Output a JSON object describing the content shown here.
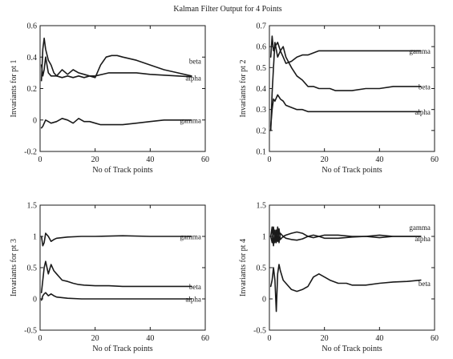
{
  "chart_data": {
    "title": "Kalman Filter Output for 4 Points",
    "line_color": "#1a1a1a",
    "background": "#ffffff",
    "charts": [
      {
        "type": "line",
        "xlabel": "No of Track points",
        "ylabel": "Invariants for pt 1",
        "xlim": [
          0,
          60
        ],
        "ylim": [
          -0.2,
          0.6
        ],
        "xticks": [
          "0",
          "20",
          "40",
          "60"
        ],
        "yticks": [
          "-0.2",
          "0",
          "0.2",
          "0.4",
          "0.6"
        ],
        "grid": false,
        "series": [
          {
            "name": "beta",
            "label_y": 0.375,
            "x": [
              0.5,
              1,
              1.5,
              2,
              3,
              4,
              5,
              6,
              8,
              10,
              12,
              14,
              16,
              18,
              20,
              22,
              24,
              26,
              28,
              30,
              35,
              40,
              45,
              50,
              55
            ],
            "y": [
              0.25,
              0.45,
              0.52,
              0.45,
              0.38,
              0.35,
              0.3,
              0.28,
              0.32,
              0.29,
              0.32,
              0.3,
              0.29,
              0.28,
              0.27,
              0.35,
              0.4,
              0.41,
              0.41,
              0.4,
              0.38,
              0.35,
              0.32,
              0.3,
              0.28
            ]
          },
          {
            "name": "alpha",
            "label_y": 0.27,
            "x": [
              0.5,
              1,
              1.5,
              2,
              3,
              4,
              6,
              8,
              10,
              12,
              14,
              16,
              18,
              20,
              25,
              30,
              35,
              40,
              45,
              50,
              55
            ],
            "y": [
              0.35,
              0.28,
              0.32,
              0.4,
              0.3,
              0.28,
              0.28,
              0.27,
              0.28,
              0.27,
              0.28,
              0.27,
              0.28,
              0.28,
              0.3,
              0.3,
              0.3,
              0.29,
              0.285,
              0.28,
              0.275
            ]
          },
          {
            "name": "gamma",
            "label_y": 0.0,
            "x": [
              0.5,
              1,
              2,
              3,
              4,
              6,
              8,
              10,
              12,
              14,
              16,
              18,
              20,
              22,
              24,
              26,
              28,
              30,
              35,
              40,
              45,
              50,
              55
            ],
            "y": [
              -0.05,
              -0.04,
              0.0,
              -0.01,
              -0.02,
              -0.01,
              0.01,
              0.0,
              -0.02,
              0.01,
              -0.01,
              -0.01,
              -0.02,
              -0.03,
              -0.03,
              -0.03,
              -0.03,
              -0.03,
              -0.02,
              -0.01,
              0.0,
              0.0,
              0.0
            ]
          }
        ]
      },
      {
        "type": "line",
        "xlabel": "No of Track points",
        "ylabel": "Invariants for pt 2",
        "xlim": [
          0,
          60
        ],
        "ylim": [
          0.1,
          0.7
        ],
        "xticks": [
          "0",
          "20",
          "40",
          "60"
        ],
        "yticks": [
          "0.1",
          "0.2",
          "0.3",
          "0.4",
          "0.5",
          "0.6",
          "0.7"
        ],
        "grid": false,
        "series": [
          {
            "name": "gamma",
            "label_y": 0.58,
            "x": [
              0.5,
              1,
              1.5,
              2,
              3,
              4,
              5,
              6,
              8,
              10,
              12,
              14,
              16,
              18,
              20,
              25,
              30,
              35,
              40,
              45,
              50,
              55
            ],
            "y": [
              0.2,
              0.38,
              0.5,
              0.62,
              0.55,
              0.58,
              0.55,
              0.52,
              0.53,
              0.55,
              0.56,
              0.56,
              0.57,
              0.58,
              0.58,
              0.58,
              0.58,
              0.58,
              0.58,
              0.58,
              0.58,
              0.58
            ]
          },
          {
            "name": "beta",
            "label_y": 0.41,
            "x": [
              0.5,
              1,
              1.5,
              2,
              3,
              4,
              5,
              6,
              8,
              10,
              12,
              14,
              16,
              18,
              20,
              22,
              24,
              26,
              28,
              30,
              35,
              40,
              45,
              50,
              55
            ],
            "y": [
              0.55,
              0.65,
              0.58,
              0.6,
              0.62,
              0.58,
              0.6,
              0.55,
              0.5,
              0.46,
              0.44,
              0.41,
              0.41,
              0.4,
              0.4,
              0.4,
              0.39,
              0.39,
              0.39,
              0.39,
              0.4,
              0.4,
              0.41,
              0.41,
              0.41
            ]
          },
          {
            "name": "alpha",
            "label_y": 0.29,
            "x": [
              0.5,
              1,
              1.5,
              2,
              3,
              4,
              5,
              6,
              8,
              10,
              12,
              14,
              16,
              18,
              20,
              30,
              40,
              50,
              55
            ],
            "y": [
              0.22,
              0.3,
              0.35,
              0.34,
              0.37,
              0.35,
              0.34,
              0.32,
              0.31,
              0.3,
              0.3,
              0.29,
              0.29,
              0.29,
              0.29,
              0.29,
              0.29,
              0.29,
              0.29
            ]
          }
        ]
      },
      {
        "type": "line",
        "xlabel": "No of Track points",
        "ylabel": "Invariants for pt 3",
        "xlim": [
          0,
          60
        ],
        "ylim": [
          -0.5,
          1.5
        ],
        "xticks": [
          "0",
          "20",
          "40",
          "60"
        ],
        "yticks": [
          "-0.5",
          "0",
          "0.5",
          "1",
          "1.5"
        ],
        "grid": false,
        "series": [
          {
            "name": "gamma",
            "label_y": 1.0,
            "x": [
              0.5,
              1,
              1.5,
              2,
              3,
              4,
              5,
              6,
              8,
              10,
              15,
              20,
              30,
              40,
              50,
              55
            ],
            "y": [
              1.0,
              0.85,
              0.9,
              1.05,
              1.0,
              0.92,
              0.95,
              0.97,
              0.98,
              0.99,
              1.0,
              1.0,
              1.01,
              1.0,
              1.0,
              1.0
            ]
          },
          {
            "name": "beta",
            "label_y": 0.2,
            "x": [
              0.5,
              1,
              1.5,
              2,
              3,
              4,
              5,
              6,
              8,
              10,
              12,
              14,
              16,
              20,
              25,
              30,
              40,
              50,
              55
            ],
            "y": [
              0.1,
              0.3,
              0.5,
              0.6,
              0.4,
              0.55,
              0.45,
              0.4,
              0.3,
              0.28,
              0.25,
              0.23,
              0.22,
              0.21,
              0.21,
              0.2,
              0.2,
              0.2,
              0.2
            ]
          },
          {
            "name": "alpha",
            "label_y": 0.0,
            "x": [
              0.5,
              1,
              1.5,
              2,
              3,
              4,
              5,
              6,
              8,
              10,
              15,
              20,
              30,
              40,
              50,
              55
            ],
            "y": [
              -0.02,
              0.05,
              0.08,
              0.1,
              0.05,
              0.08,
              0.05,
              0.03,
              0.02,
              0.01,
              0.0,
              0.0,
              0.0,
              0.0,
              0.0,
              0.0
            ]
          }
        ]
      },
      {
        "type": "line",
        "xlabel": "No of Track points",
        "ylabel": "Invariants for pt 4",
        "xlim": [
          0,
          60
        ],
        "ylim": [
          -0.5,
          1.5
        ],
        "xticks": [
          "0",
          "20",
          "40",
          "60"
        ],
        "yticks": [
          "-0.5",
          "0",
          "0.5",
          "1",
          "1.5"
        ],
        "grid": false,
        "series": [
          {
            "name": "gamma",
            "label_y": 1.15,
            "x": [
              0.5,
              1,
              1.5,
              2,
              2.5,
              3,
              3.5,
              4,
              5,
              6,
              8,
              10,
              12,
              14,
              16,
              18,
              20,
              25,
              30,
              35,
              40,
              45,
              50,
              55
            ],
            "y": [
              1.0,
              1.15,
              0.85,
              1.1,
              0.9,
              1.15,
              0.9,
              1.05,
              1.0,
              1.02,
              1.05,
              1.07,
              1.05,
              1.0,
              0.98,
              1.0,
              1.02,
              1.02,
              1.0,
              1.0,
              1.02,
              1.0,
              1.0,
              1.0
            ]
          },
          {
            "name": "alpha",
            "label_y": 0.97,
            "x": [
              0.5,
              1,
              1.5,
              2,
              2.5,
              3,
              3.5,
              4,
              5,
              6,
              8,
              10,
              12,
              14,
              16,
              18,
              20,
              25,
              30,
              35,
              40,
              45,
              50,
              55
            ],
            "y": [
              1.0,
              0.9,
              1.15,
              0.9,
              1.1,
              0.92,
              1.12,
              0.95,
              1.0,
              0.97,
              0.95,
              0.94,
              0.96,
              1.0,
              1.02,
              1.0,
              0.97,
              0.97,
              0.99,
              1.0,
              0.98,
              1.0,
              1.0,
              1.0
            ]
          },
          {
            "name": "beta",
            "label_y": 0.25,
            "x": [
              0.5,
              1,
              1.5,
              2,
              2.5,
              3,
              3.5,
              4,
              5,
              6,
              8,
              10,
              12,
              14,
              16,
              18,
              20,
              22,
              25,
              28,
              30,
              35,
              40,
              45,
              50,
              55
            ],
            "y": [
              0.2,
              0.3,
              0.5,
              0.3,
              -0.2,
              0.4,
              0.55,
              0.45,
              0.3,
              0.25,
              0.15,
              0.12,
              0.15,
              0.2,
              0.35,
              0.4,
              0.35,
              0.3,
              0.25,
              0.25,
              0.22,
              0.22,
              0.25,
              0.27,
              0.28,
              0.3
            ]
          }
        ]
      }
    ]
  }
}
